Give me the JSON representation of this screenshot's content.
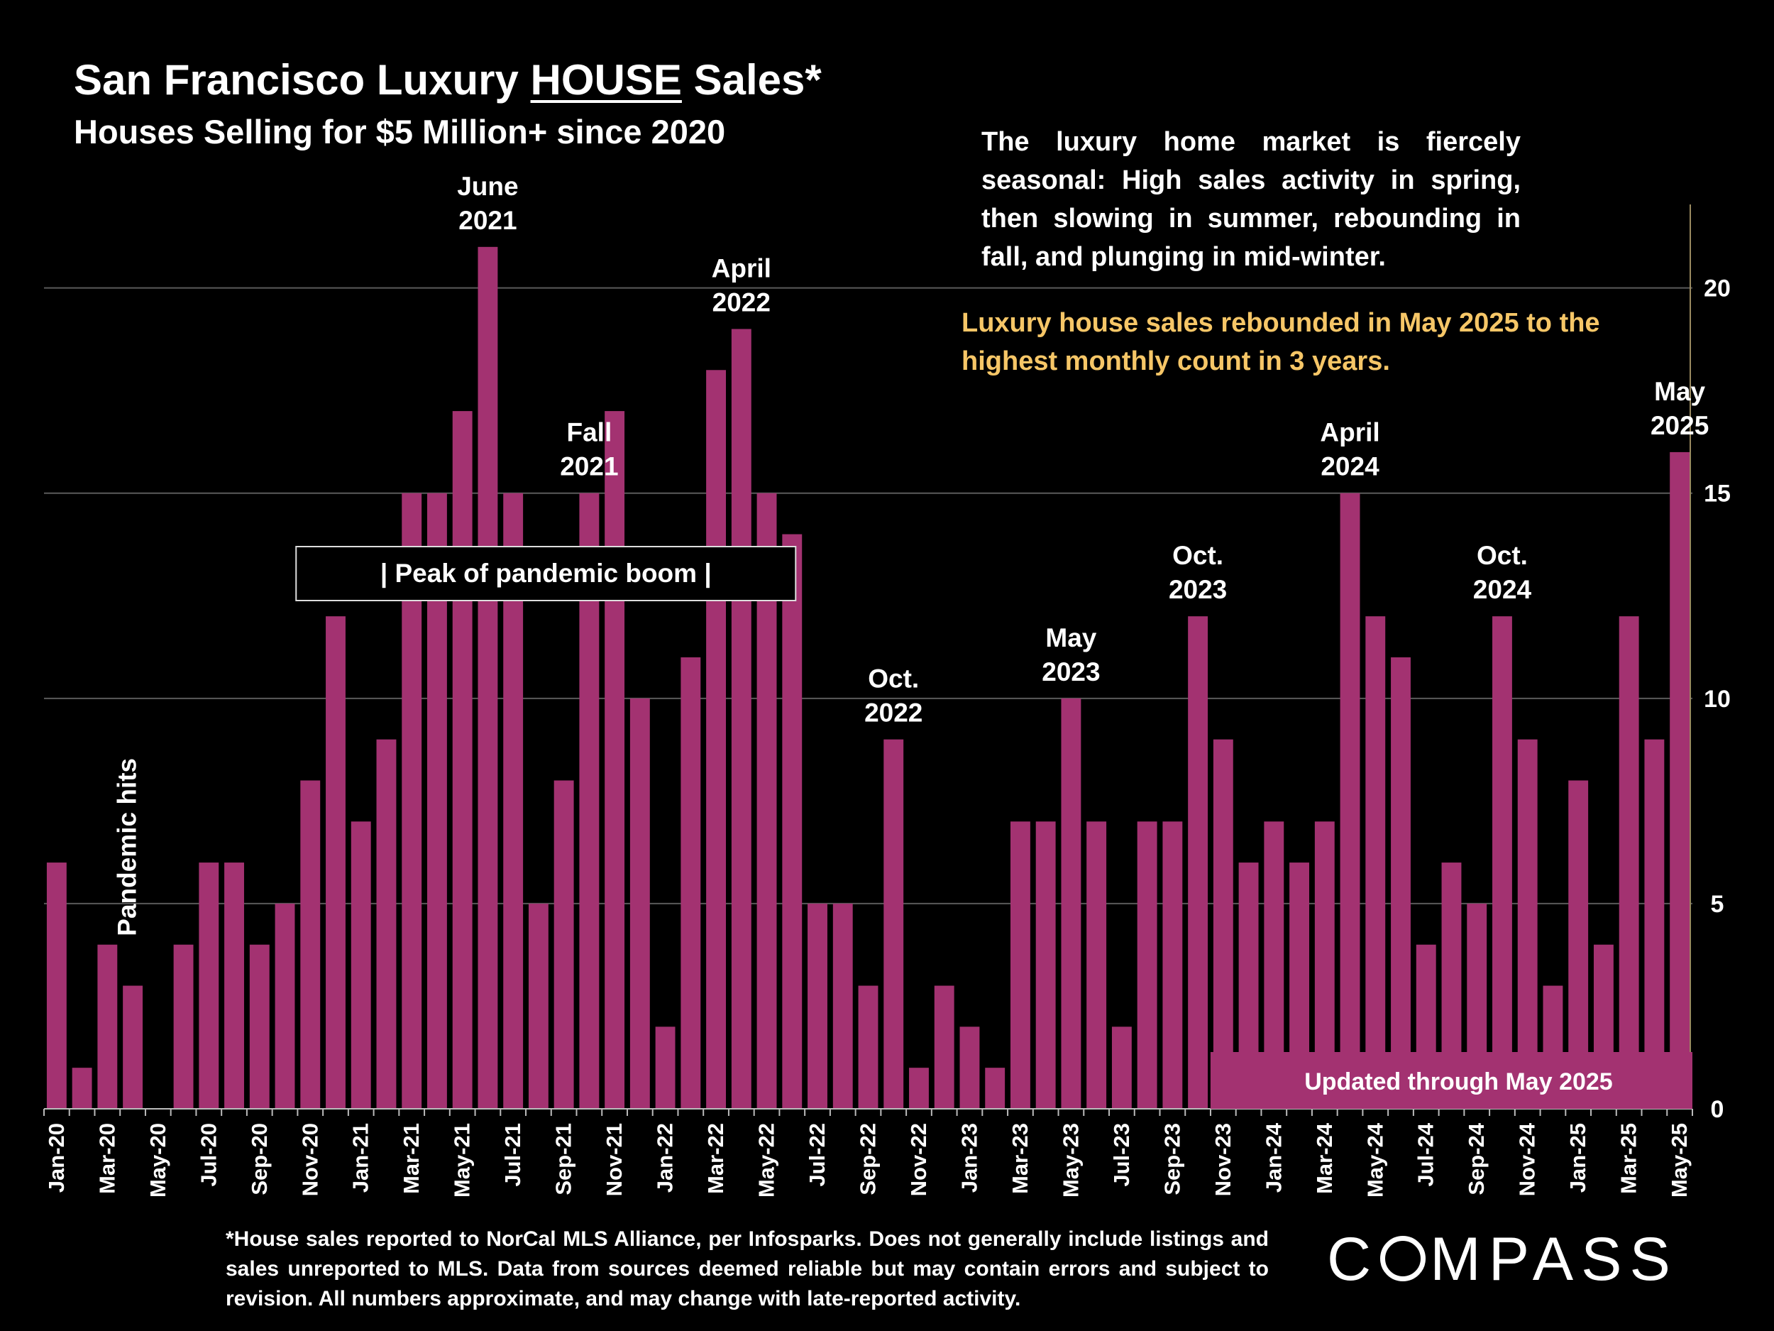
{
  "title": {
    "pre": "San Francisco Luxury ",
    "emph": "HOUSE",
    "post": " Sales*"
  },
  "subtitle": "Houses Selling for $5 Million+ since 2020",
  "commentary": "The luxury home market is fiercely seasonal:  High sales activity in spring, then slowing in summer, rebounding in fall, and plunging in mid-winter.",
  "highlight": "Luxury house sales rebounded in May 2025 to the highest monthly count in 3 years.",
  "footnote": "*House sales reported to NorCal MLS Alliance, per Infosparks. Does not generally include listings and sales unreported to MLS. Data from sources deemed reliable but may contain errors and subject to revision.  All numbers approximate, and may change with late-reported activity.",
  "logo": {
    "pre": "C",
    "post": "MPASS"
  },
  "colors": {
    "bar": "#a33271",
    "highlight": "#f6c667",
    "background": "#000000"
  },
  "chart_data": {
    "type": "bar",
    "title": "San Francisco Luxury HOUSE Sales*",
    "xlabel": "",
    "ylabel": "",
    "ylim": [
      0,
      22
    ],
    "yticks": [
      0,
      5,
      10,
      15,
      20
    ],
    "y_axis_side": "right",
    "grid": true,
    "categories": [
      "Jan-20",
      "Feb-20",
      "Mar-20",
      "Apr-20",
      "May-20",
      "Jun-20",
      "Jul-20",
      "Aug-20",
      "Sep-20",
      "Oct-20",
      "Nov-20",
      "Dec-20",
      "Jan-21",
      "Feb-21",
      "Mar-21",
      "Apr-21",
      "May-21",
      "Jun-21",
      "Jul-21",
      "Aug-21",
      "Sep-21",
      "Oct-21",
      "Nov-21",
      "Dec-21",
      "Jan-22",
      "Feb-22",
      "Mar-22",
      "Apr-22",
      "May-22",
      "Jun-22",
      "Jul-22",
      "Aug-22",
      "Sep-22",
      "Oct-22",
      "Nov-22",
      "Dec-22",
      "Jan-23",
      "Feb-23",
      "Mar-23",
      "Apr-23",
      "May-23",
      "Jun-23",
      "Jul-23",
      "Aug-23",
      "Sep-23",
      "Oct-23",
      "Nov-23",
      "Dec-23",
      "Jan-24",
      "Feb-24",
      "Mar-24",
      "Apr-24",
      "May-24",
      "Jun-24",
      "Jul-24",
      "Aug-24",
      "Sep-24",
      "Oct-24",
      "Nov-24",
      "Dec-24",
      "Jan-25",
      "Feb-25",
      "Mar-25",
      "Apr-25",
      "May-25"
    ],
    "values": [
      6,
      1,
      4,
      3,
      0,
      4,
      6,
      6,
      4,
      5,
      8,
      12,
      7,
      9,
      15,
      15,
      17,
      21,
      15,
      5,
      8,
      15,
      17,
      10,
      2,
      11,
      18,
      19,
      15,
      14,
      5,
      5,
      3,
      9,
      1,
      3,
      2,
      1,
      7,
      7,
      10,
      7,
      2,
      7,
      7,
      12,
      9,
      6,
      7,
      6,
      7,
      15,
      12,
      11,
      4,
      6,
      5,
      12,
      9,
      3,
      8,
      4,
      12,
      9,
      16
    ],
    "xtick_labels": [
      "Jan-20",
      "Mar-20",
      "May-20",
      "Jul-20",
      "Sep-20",
      "Nov-20",
      "Jan-21",
      "Mar-21",
      "May-21",
      "Jul-21",
      "Sep-21",
      "Nov-21",
      "Jan-22",
      "Mar-22",
      "May-22",
      "Jul-22",
      "Sep-22",
      "Nov-22",
      "Jan-23",
      "Mar-23",
      "May-23",
      "Jul-23",
      "Sep-23",
      "Nov-23",
      "Jan-24",
      "Mar-24",
      "May-24",
      "Jul-24",
      "Sep-24",
      "Nov-24",
      "Jan-25",
      "Mar-25",
      "May-25"
    ],
    "annotations": [
      {
        "index": 17,
        "lines": [
          "June",
          "2021"
        ]
      },
      {
        "index": 21,
        "lines": [
          "Fall",
          "2021"
        ]
      },
      {
        "index": 27,
        "lines": [
          "April",
          "2022"
        ]
      },
      {
        "index": 33,
        "lines": [
          "Oct.",
          "2022"
        ]
      },
      {
        "index": 40,
        "lines": [
          "May",
          "2023"
        ]
      },
      {
        "index": 45,
        "lines": [
          "Oct.",
          "2023"
        ]
      },
      {
        "index": 51,
        "lines": [
          "April",
          "2024"
        ]
      },
      {
        "index": 57,
        "lines": [
          "Oct.",
          "2024"
        ]
      },
      {
        "index": 64,
        "lines": [
          "May",
          "2025"
        ]
      }
    ],
    "pandemic_label": "Pandemic hits",
    "peak_label": "|    Peak of pandemic boom    |",
    "updated_label": "Updated through May 2025"
  }
}
